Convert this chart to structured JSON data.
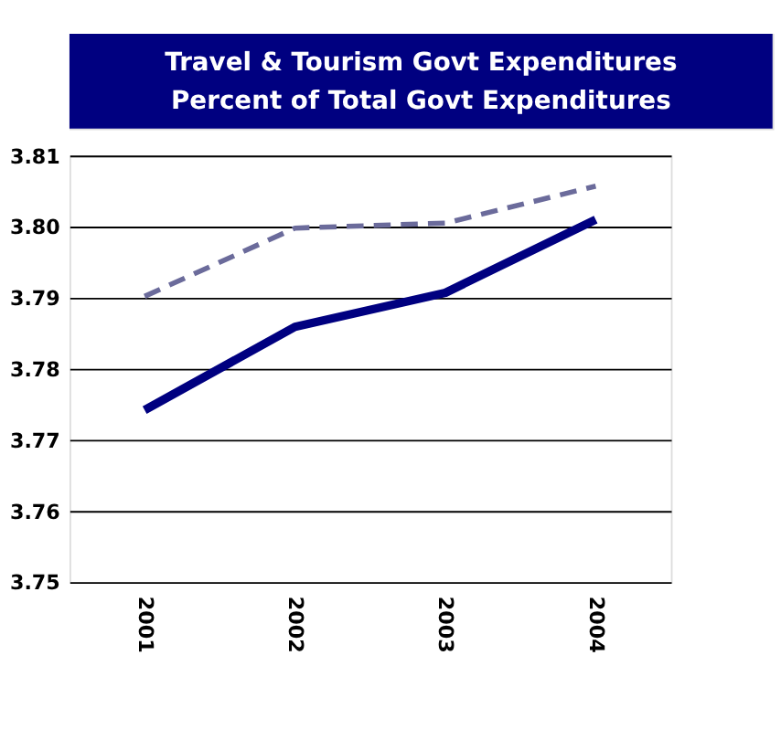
{
  "chart_data": {
    "type": "line",
    "title": "Travel & Tourism Govt Expenditures\nPercent of Total Govt Expenditures",
    "categories": [
      "2001",
      "2002",
      "2003",
      "2004"
    ],
    "series": [
      {
        "color": "#000080",
        "line_style": "solid",
        "values": [
          3.7742,
          3.7859,
          3.7907,
          3.801
        ]
      },
      {
        "color": "#6b6b9b",
        "line_style": "dashed",
        "values": [
          3.7902,
          3.7998,
          3.8005,
          3.8057
        ]
      }
    ],
    "ylim": [
      3.75,
      3.81
    ],
    "yticks": [
      3.75,
      3.76,
      3.77,
      3.78,
      3.79,
      {
        "value": 3.8,
        "label": "3.80"
      },
      3.81
    ],
    "grid": "y",
    "marker": "none"
  }
}
